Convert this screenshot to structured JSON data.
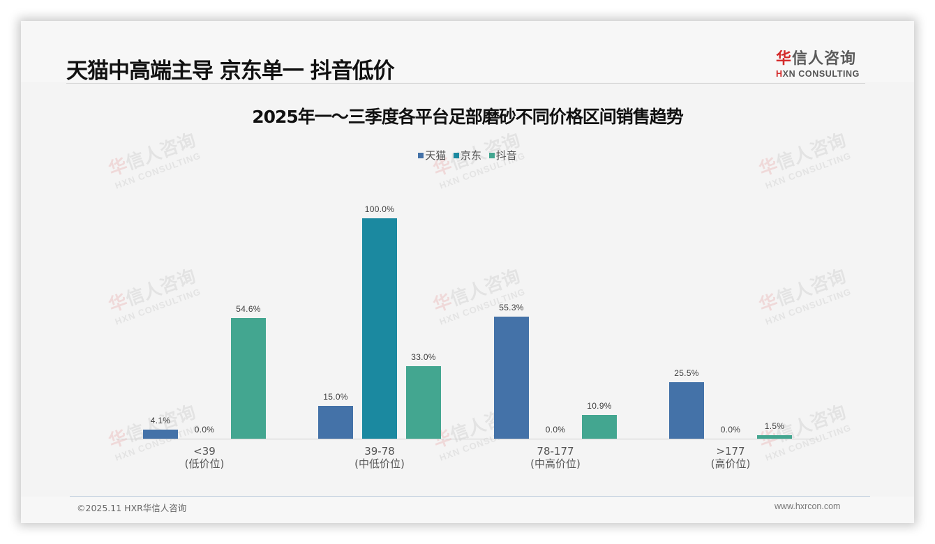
{
  "header": {
    "title": "天猫中高端主导 京东单一 抖音低价",
    "logo": {
      "cn_mark": "华",
      "cn_rest": "信人咨询",
      "en_mark": "H",
      "en_rest": "XN CONSULTING"
    }
  },
  "watermark": {
    "cn_mark": "华",
    "cn_rest": "信人咨询",
    "en": "HXN CONSULTING"
  },
  "footer": {
    "copyright": "©2025.11 HXR华信人咨询",
    "website": "www.hxrcon.com"
  },
  "colors": {
    "tmall": "#4472a8",
    "jd": "#1b89a0",
    "douyin": "#43a690",
    "accent_red": "#d42a2a"
  },
  "chart_data": {
    "type": "bar",
    "title": "2025年一～三季度各平台足部磨砂不同价格区间销售趋势",
    "xlabel": "",
    "ylabel": "",
    "ylim": [
      0,
      100
    ],
    "grid": false,
    "legend_position": "top",
    "categories": [
      "<39\n(低价位)",
      "39-78\n(中低价位)",
      "78-177\n(中高价位)",
      ">177\n(高价位)"
    ],
    "category_labels": [
      {
        "range": "<39",
        "tier": "(低价位)"
      },
      {
        "range": "39-78",
        "tier": "(中低价位)"
      },
      {
        "range": "78-177",
        "tier": "(中高价位)"
      },
      {
        "range": ">177",
        "tier": "(高价位)"
      }
    ],
    "series": [
      {
        "name": "天猫",
        "color": "#4472a8",
        "values": [
          4.1,
          15.0,
          55.3,
          25.5
        ],
        "labels": [
          "4.1%",
          "15.0%",
          "55.3%",
          "25.5%"
        ]
      },
      {
        "name": "京东",
        "color": "#1b89a0",
        "values": [
          0.0,
          100.0,
          0.0,
          0.0
        ],
        "labels": [
          "0.0%",
          "100.0%",
          "0.0%",
          "0.0%"
        ]
      },
      {
        "name": "抖音",
        "color": "#43a690",
        "values": [
          54.6,
          33.0,
          10.9,
          1.5
        ],
        "labels": [
          "54.6%",
          "33.0%",
          "10.9%",
          "1.5%"
        ]
      }
    ]
  }
}
